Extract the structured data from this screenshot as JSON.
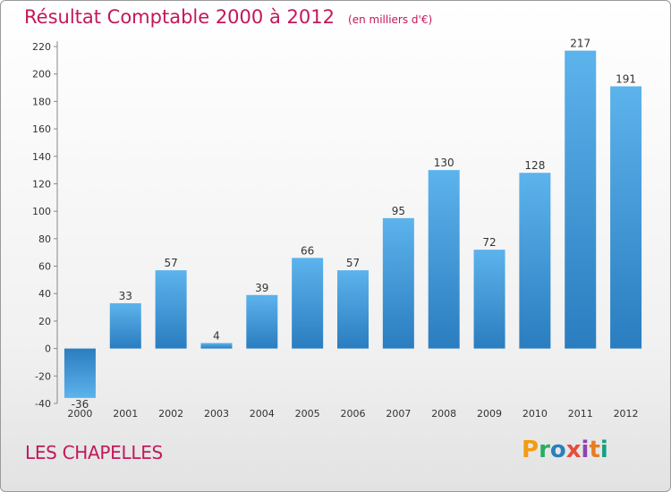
{
  "header": {
    "title": "Résultat Comptable 2000 à 2012",
    "subtitle": "(en milliers d'€)"
  },
  "footer": {
    "commune": "LES CHAPELLES",
    "logo_letters": [
      "P",
      "r",
      "o",
      "x",
      "i",
      "t",
      "i"
    ],
    "logo_colors": [
      "#f39c12",
      "#27ae60",
      "#2980b9",
      "#e74c3c",
      "#8e44ad",
      "#e67e22",
      "#16a085"
    ]
  },
  "chart_data": {
    "type": "bar",
    "categories": [
      "2000",
      "2001",
      "2002",
      "2003",
      "2004",
      "2005",
      "2006",
      "2007",
      "2008",
      "2009",
      "2010",
      "2011",
      "2012"
    ],
    "values": [
      -36,
      33,
      57,
      4,
      39,
      66,
      57,
      95,
      130,
      72,
      128,
      217,
      191
    ],
    "title": "Résultat Comptable 2000 à 2012",
    "ylim": [
      -40,
      220
    ],
    "yticks": [
      -40,
      -20,
      0,
      20,
      40,
      60,
      80,
      100,
      120,
      140,
      160,
      180,
      200,
      220
    ],
    "grid": false,
    "bar_color": "#3a93d6"
  }
}
